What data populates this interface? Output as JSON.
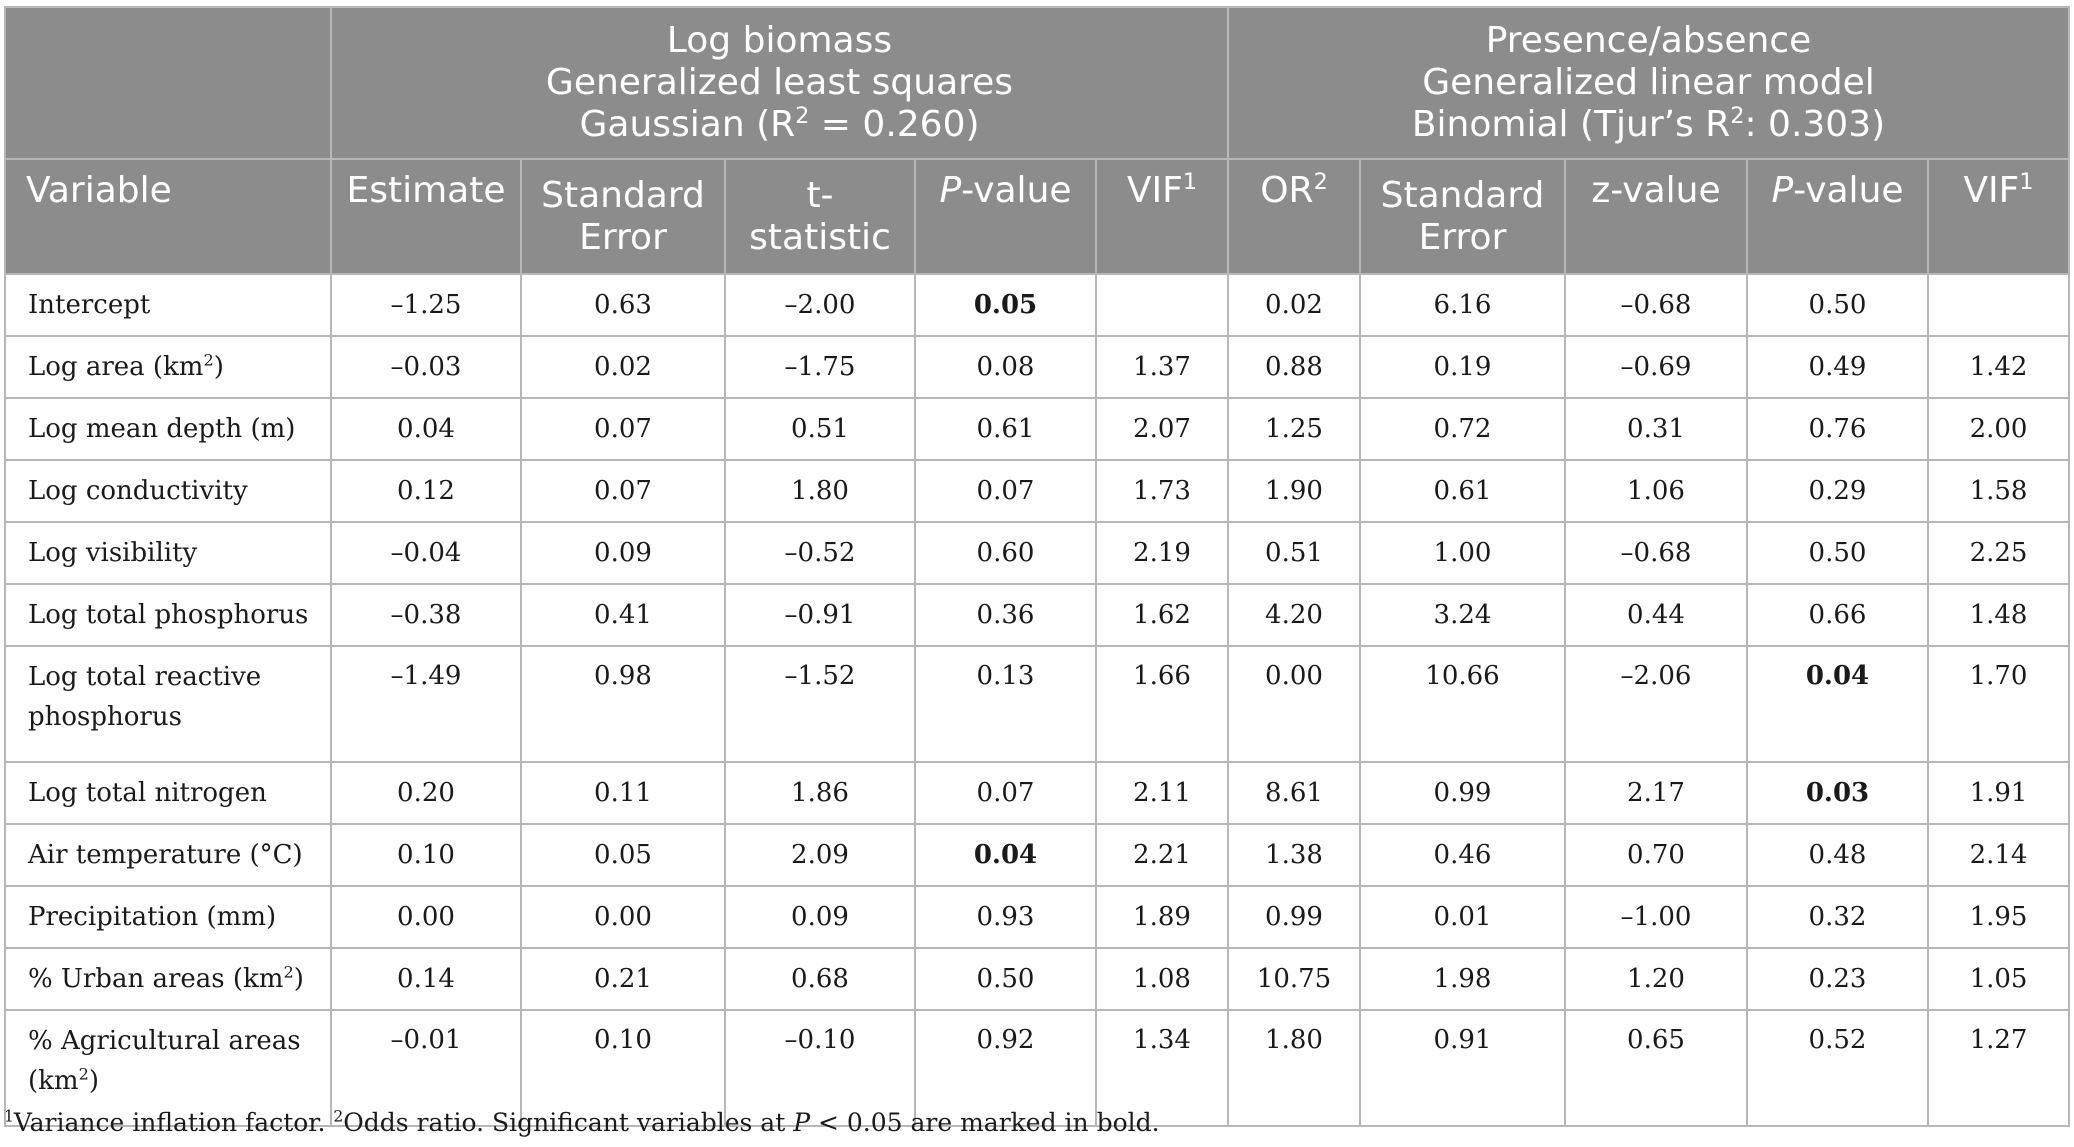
{
  "header": {
    "group1": {
      "line1": "Log biomass",
      "line2": "Generalized least squares",
      "line3_pre": "Gaussian (R",
      "line3_sup": "2",
      "line3_post": " = 0.260)"
    },
    "group2": {
      "line1": "Presence/absence",
      "line2": "Generalized linear model",
      "line3_pre": "Binomial (Tjur’s R",
      "line3_sup": "2",
      "line3_post": ": 0.303)"
    },
    "columns": {
      "variable": "Variable",
      "estimate": "Estimate",
      "se1_line1": "Standard",
      "se1_line2": "Error",
      "t_line1": "t-",
      "t_line2": "statistic",
      "p1_italic": "P",
      "p1_rest": "-value",
      "vif1": "VIF",
      "vif1_sup": "1",
      "or": "OR",
      "or_sup": "2",
      "se2_line1": "Standard",
      "se2_line2": "Error",
      "z": "z-value",
      "p2_italic": "P",
      "p2_rest": "-value",
      "vif2": "VIF",
      "vif2_sup": "1"
    }
  },
  "rows": [
    {
      "label": "Intercept",
      "label_sup": "",
      "label_post": "",
      "estimate": "–1.25",
      "se1": "0.63",
      "t": "–2.00",
      "p1": "0.05",
      "vif1": "",
      "or": "0.02",
      "se2": "6.16",
      "z": "–0.68",
      "p2": "0.50",
      "vif2": ""
    },
    {
      "label": "Log area (km",
      "label_sup": "2",
      "label_post": ")",
      "estimate": "–0.03",
      "se1": "0.02",
      "t": "–1.75",
      "p1": "0.08",
      "vif1": "1.37",
      "or": "0.88",
      "se2": "0.19",
      "z": "–0.69",
      "p2": "0.49",
      "vif2": "1.42"
    },
    {
      "label": "Log mean depth (m)",
      "label_sup": "",
      "label_post": "",
      "estimate": "0.04",
      "se1": "0.07",
      "t": "0.51",
      "p1": "0.61",
      "vif1": "2.07",
      "or": "1.25",
      "se2": "0.72",
      "z": "0.31",
      "p2": "0.76",
      "vif2": "2.00"
    },
    {
      "label": "Log conductivity",
      "label_sup": "",
      "label_post": "",
      "estimate": "0.12",
      "se1": "0.07",
      "t": "1.80",
      "p1": "0.07",
      "vif1": "1.73",
      "or": "1.90",
      "se2": "0.61",
      "z": "1.06",
      "p2": "0.29",
      "vif2": "1.58"
    },
    {
      "label": "Log visibility",
      "label_sup": "",
      "label_post": "",
      "estimate": "–0.04",
      "se1": "0.09",
      "t": "–0.52",
      "p1": "0.60",
      "vif1": "2.19",
      "or": "0.51",
      "se2": "1.00",
      "z": "–0.68",
      "p2": "0.50",
      "vif2": "2.25"
    },
    {
      "label": "Log total phosphorus",
      "label_sup": "",
      "label_post": "",
      "estimate": "–0.38",
      "se1": "0.41",
      "t": "–0.91",
      "p1": "0.36",
      "vif1": "1.62",
      "or": "4.20",
      "se2": "3.24",
      "z": "0.44",
      "p2": "0.66",
      "vif2": "1.48"
    },
    {
      "label": "Log total reactive",
      "label2": "phosphorus",
      "estimate": "–1.49",
      "se1": "0.98",
      "t": "–1.52",
      "p1": "0.13",
      "vif1": "1.66",
      "or": "0.00",
      "se2": "10.66",
      "z": "–2.06",
      "p2": "0.04",
      "vif2": "1.70"
    },
    {
      "label": "Log total nitrogen",
      "label_sup": "",
      "label_post": "",
      "estimate": "0.20",
      "se1": "0.11",
      "t": "1.86",
      "p1": "0.07",
      "vif1": "2.11",
      "or": "8.61",
      "se2": "0.99",
      "z": "2.17",
      "p2": "0.03",
      "vif2": "1.91"
    },
    {
      "label": "Air temperature (°C)",
      "label_sup": "",
      "label_post": "",
      "estimate": "0.10",
      "se1": "0.05",
      "t": "2.09",
      "p1": "0.04",
      "vif1": "2.21",
      "or": "1.38",
      "se2": "0.46",
      "z": "0.70",
      "p2": "0.48",
      "vif2": "2.14"
    },
    {
      "label": "Precipitation (mm)",
      "label_sup": "",
      "label_post": "",
      "estimate": "0.00",
      "se1": "0.00",
      "t": "0.09",
      "p1": "0.93",
      "vif1": "1.89",
      "or": "0.99",
      "se2": "0.01",
      "z": "–1.00",
      "p2": "0.32",
      "vif2": "1.95"
    },
    {
      "label": "% Urban areas (km",
      "label_sup": "2",
      "label_post": ")",
      "estimate": "0.14",
      "se1": "0.21",
      "t": "0.68",
      "p1": "0.50",
      "vif1": "1.08",
      "or": "10.75",
      "se2": "1.98",
      "z": "1.20",
      "p2": "0.23",
      "vif2": "1.05"
    },
    {
      "label": "% Agricultural areas",
      "label2_pre": "(km",
      "label2_sup": "2",
      "label2_post": ")",
      "estimate": "–0.01",
      "se1": "0.10",
      "t": "–0.10",
      "p1": "0.92",
      "vif1": "1.34",
      "or": "1.80",
      "se2": "0.91",
      "z": "0.65",
      "p2": "0.52",
      "vif2": "1.27"
    }
  ],
  "footnote": {
    "sup1": "1",
    "text1": "Variance inflation factor. ",
    "sup2": "2",
    "text2": "Odds ratio. Significant variables at ",
    "p_italic": "P",
    "text3": " < 0.05 are marked in bold."
  }
}
